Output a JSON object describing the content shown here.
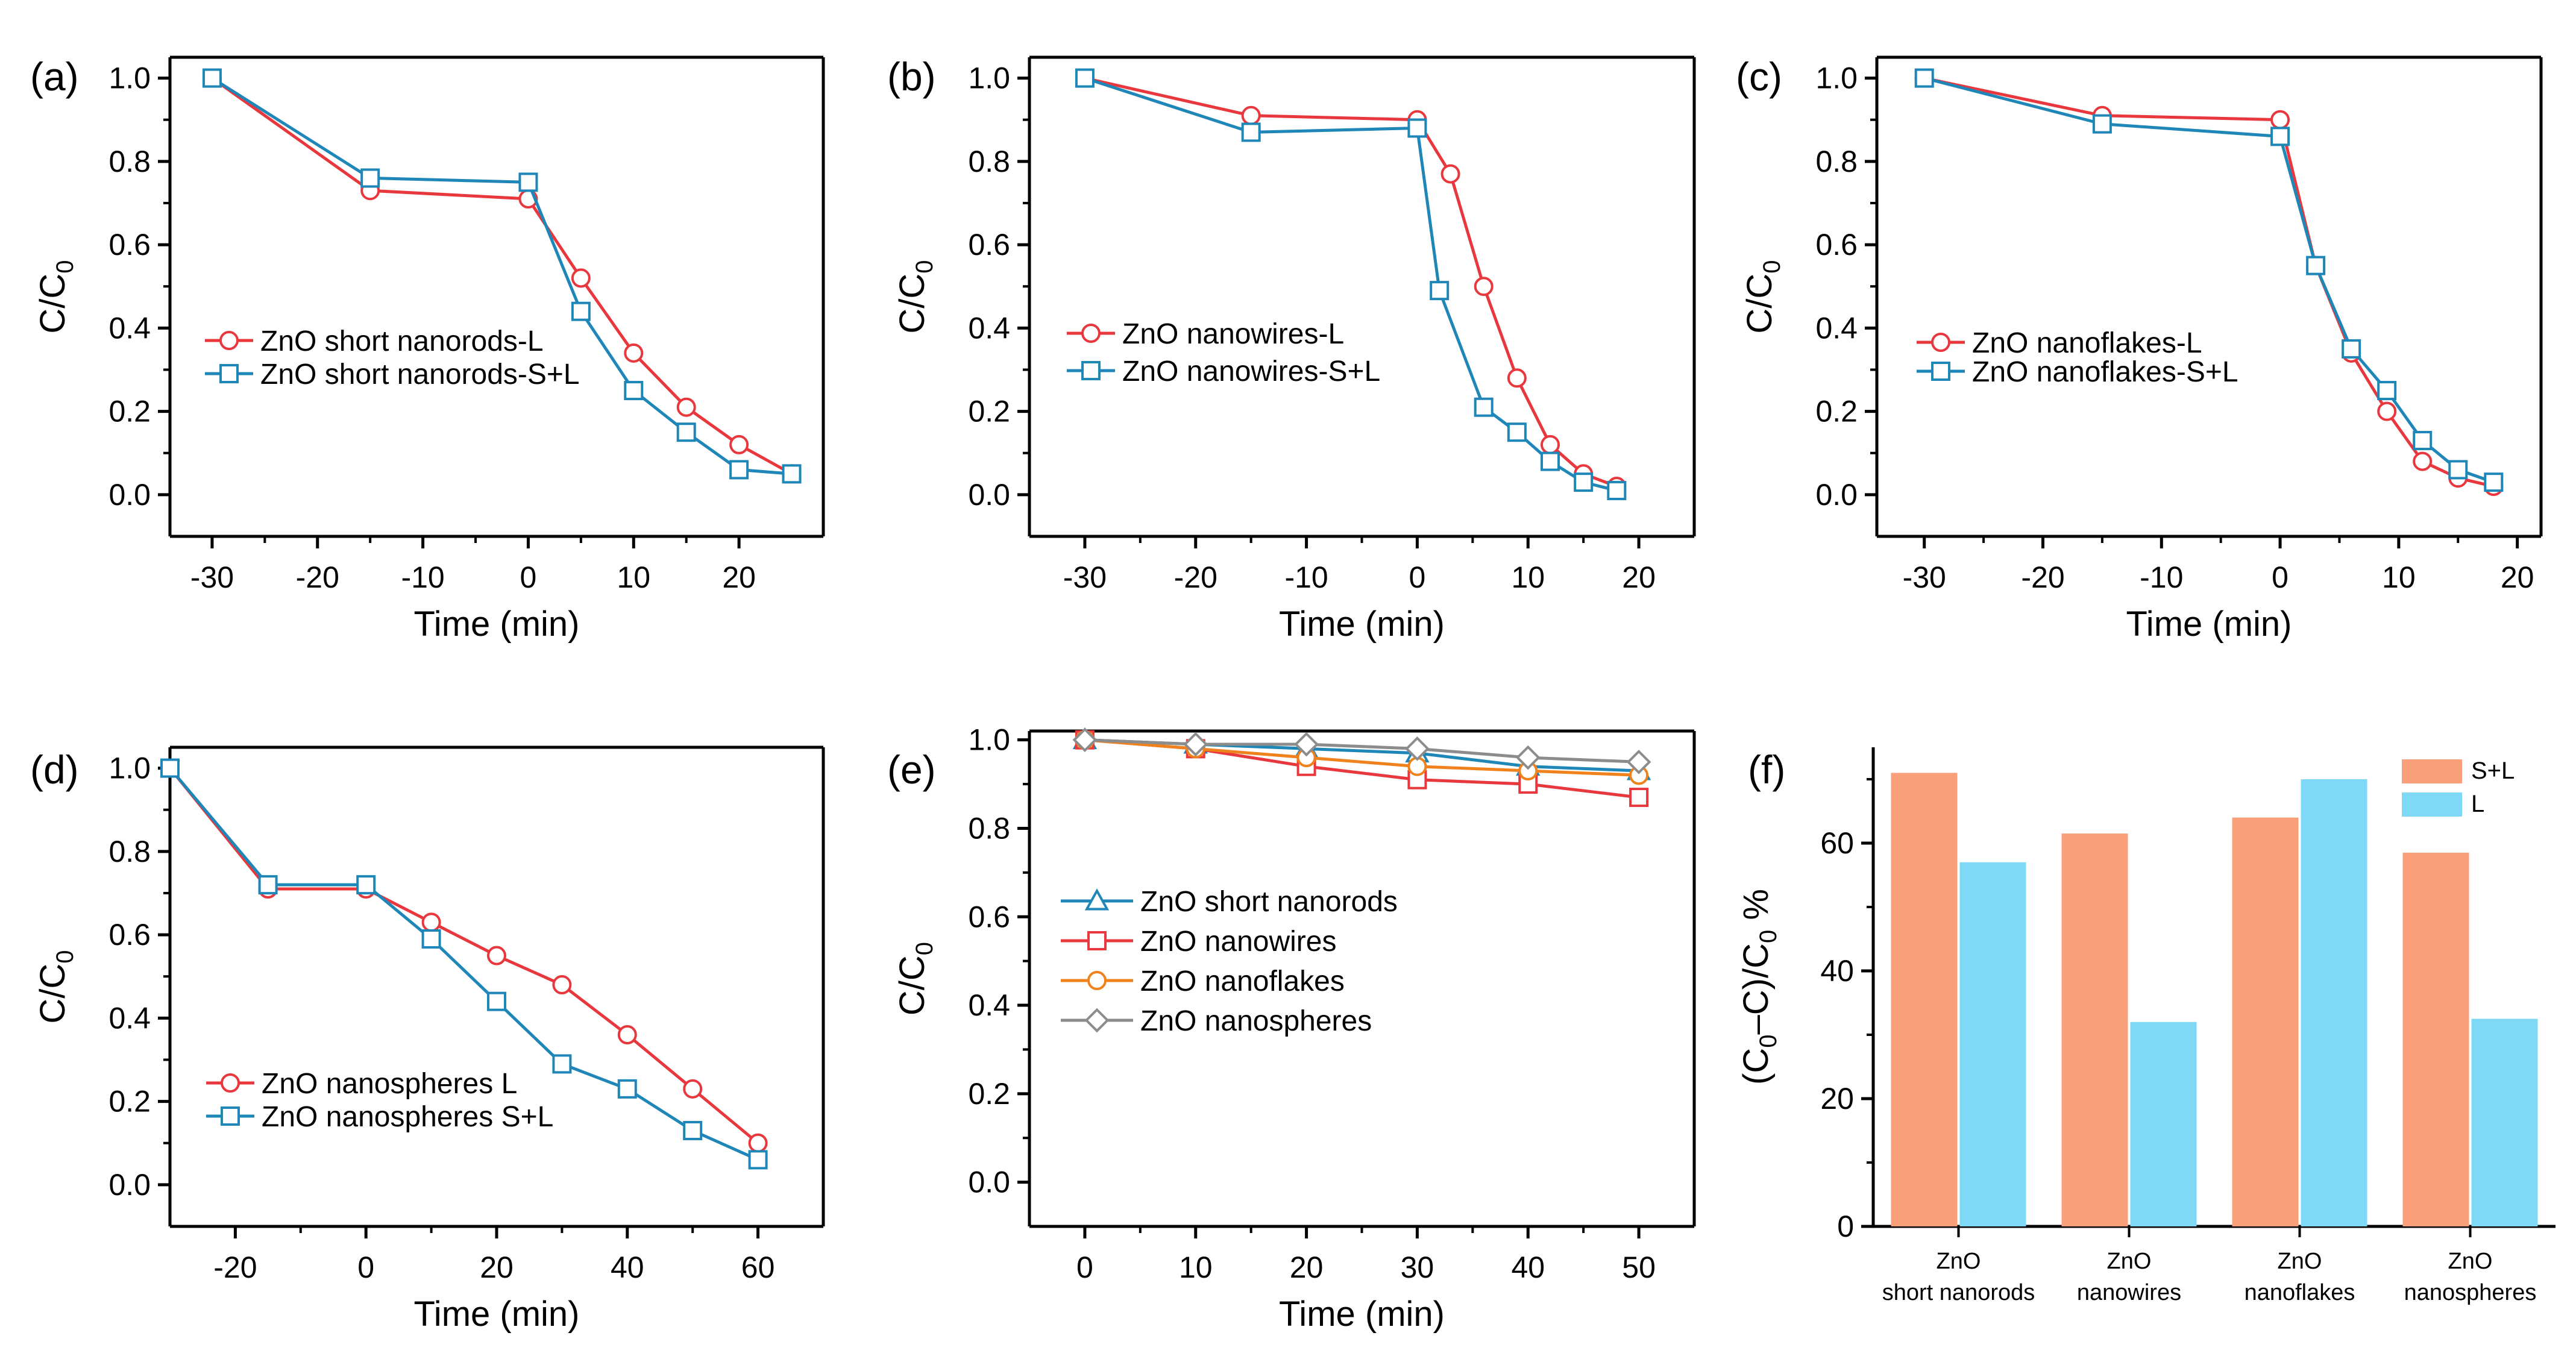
{
  "colors": {
    "red": "#e8383d",
    "blue": "#1f86b8",
    "orange": "#f0821e",
    "gray": "#8c8c8c",
    "bar_sl": "#f9a07a",
    "bar_l": "#7fd8f5"
  },
  "chart_data": [
    {
      "id": "a",
      "panel_label": "(a)",
      "type": "line",
      "xlabel": "Time (min)",
      "ylabel_main": "C/C",
      "ylabel_sub": "0",
      "xlim": [
        -34,
        28
      ],
      "ylim": [
        -0.1,
        1.05
      ],
      "xticks": [
        -30,
        -20,
        -10,
        0,
        10,
        20
      ],
      "xtick_labels": [
        "-30",
        "-20",
        "-10",
        "0",
        "10",
        "20"
      ],
      "yticks": [
        0,
        0.2,
        0.4,
        0.6,
        0.8,
        1.0
      ],
      "ytick_labels": [
        "0.0",
        "0.2",
        "0.4",
        "0.6",
        "0.8",
        "1.0"
      ],
      "legend_position": "center-left",
      "series": [
        {
          "name": "ZnO short nanorods-L",
          "color": "#e8383d",
          "marker": "circle",
          "dash": false,
          "x": [
            -30,
            -15,
            0,
            5,
            10,
            15,
            20,
            25
          ],
          "y": [
            1.0,
            0.73,
            0.71,
            0.52,
            0.34,
            0.21,
            0.12,
            0.05
          ]
        },
        {
          "name": "ZnO short nanorods-S+L",
          "color": "#1f86b8",
          "marker": "square",
          "dash": false,
          "x": [
            -30,
            -15,
            0,
            5,
            10,
            15,
            20,
            25
          ],
          "y": [
            1.0,
            0.76,
            0.75,
            0.44,
            0.25,
            0.15,
            0.06,
            0.05
          ]
        }
      ]
    },
    {
      "id": "b",
      "panel_label": "(b)",
      "type": "line",
      "xlabel": "Time (min)",
      "ylabel_main": "C/C",
      "ylabel_sub": "0",
      "xlim": [
        -35,
        25
      ],
      "ylim": [
        -0.1,
        1.05
      ],
      "xticks": [
        -30,
        -20,
        -10,
        0,
        10,
        20
      ],
      "xtick_labels": [
        "-30",
        "-20",
        "-10",
        "0",
        "10",
        "20"
      ],
      "yticks": [
        0,
        0.2,
        0.4,
        0.6,
        0.8,
        1.0
      ],
      "ytick_labels": [
        "0.0",
        "0.2",
        "0.4",
        "0.6",
        "0.8",
        "1.0"
      ],
      "legend_position": "center-left",
      "series": [
        {
          "name": "ZnO nanowires-L",
          "color": "#e8383d",
          "marker": "circle",
          "dash": false,
          "x": [
            -30,
            -15,
            0,
            3,
            6,
            9,
            12,
            15,
            18
          ],
          "y": [
            1.0,
            0.91,
            0.9,
            0.77,
            0.5,
            0.28,
            0.12,
            0.05,
            0.02
          ]
        },
        {
          "name": "ZnO nanowires-S+L",
          "color": "#1f86b8",
          "marker": "square",
          "dash": false,
          "x": [
            -30,
            -15,
            0,
            2,
            6,
            9,
            12,
            15,
            18
          ],
          "y": [
            1.0,
            0.87,
            0.88,
            0.49,
            0.21,
            0.15,
            0.08,
            0.03,
            0.01
          ]
        }
      ]
    },
    {
      "id": "c",
      "panel_label": "(c)",
      "type": "line",
      "xlabel": "Time (min)",
      "ylabel_main": "C/C",
      "ylabel_sub": "0",
      "xlim": [
        -34,
        22
      ],
      "ylim": [
        -0.1,
        1.05
      ],
      "xticks": [
        -30,
        -20,
        -10,
        0,
        10,
        20
      ],
      "xtick_labels": [
        "-30",
        "-20",
        "-10",
        "0",
        "10",
        "20"
      ],
      "yticks": [
        0,
        0.2,
        0.4,
        0.6,
        0.8,
        1.0
      ],
      "ytick_labels": [
        "0.0",
        "0.2",
        "0.4",
        "0.6",
        "0.8",
        "1.0"
      ],
      "legend_position": "center-left",
      "series": [
        {
          "name": "ZnO nanoflakes-L",
          "color": "#e8383d",
          "marker": "circle",
          "dash": false,
          "x": [
            -30,
            -15,
            0,
            3,
            6,
            9,
            12,
            15,
            18
          ],
          "y": [
            1.0,
            0.91,
            0.9,
            0.55,
            0.34,
            0.2,
            0.08,
            0.04,
            0.02
          ]
        },
        {
          "name": "ZnO nanoflakes-S+L",
          "color": "#1f86b8",
          "marker": "square",
          "dash": false,
          "x": [
            -30,
            -15,
            0,
            3,
            6,
            9,
            12,
            15,
            18
          ],
          "y": [
            1.0,
            0.89,
            0.86,
            0.55,
            0.35,
            0.25,
            0.13,
            0.06,
            0.03
          ]
        }
      ]
    },
    {
      "id": "d",
      "panel_label": "(d)",
      "type": "line",
      "xlabel": "Time (min)",
      "ylabel_main": "C/C",
      "ylabel_sub": "0",
      "xlim": [
        -30,
        70
      ],
      "ylim": [
        -0.1,
        1.05
      ],
      "xticks": [
        -20,
        0,
        20,
        40,
        60
      ],
      "xtick_labels": [
        "-20",
        "0",
        "20",
        "40",
        "60"
      ],
      "yticks": [
        0,
        0.2,
        0.4,
        0.6,
        0.8,
        1.0
      ],
      "ytick_labels": [
        "0.0",
        "0.2",
        "0.4",
        "0.6",
        "0.8",
        "1.0"
      ],
      "legend_position": "lower-left",
      "series": [
        {
          "name": "ZnO nanospheres L",
          "color": "#e8383d",
          "marker": "circle",
          "dash": false,
          "x": [
            -30,
            -15,
            0,
            10,
            20,
            30,
            40,
            50,
            60
          ],
          "y": [
            1.0,
            0.71,
            0.71,
            0.63,
            0.55,
            0.48,
            0.36,
            0.23,
            0.1
          ]
        },
        {
          "name": "ZnO nanospheres S+L",
          "color": "#1f86b8",
          "marker": "square",
          "dash": false,
          "x": [
            -30,
            -15,
            0,
            10,
            20,
            30,
            40,
            50,
            60
          ],
          "y": [
            1.0,
            0.72,
            0.72,
            0.59,
            0.44,
            0.29,
            0.23,
            0.13,
            0.06
          ]
        }
      ]
    },
    {
      "id": "e",
      "panel_label": "(e)",
      "type": "line",
      "xlabel": "Time (min)",
      "ylabel_main": "C/C",
      "ylabel_sub": "0",
      "xlim": [
        -5,
        55
      ],
      "ylim": [
        -0.1,
        1.02
      ],
      "xticks": [
        0,
        10,
        20,
        30,
        40,
        50
      ],
      "xtick_labels": [
        "0",
        "10",
        "20",
        "30",
        "40",
        "50"
      ],
      "yticks": [
        0,
        0.2,
        0.4,
        0.6,
        0.8,
        1.0
      ],
      "ytick_labels": [
        "0.0",
        "0.2",
        "0.4",
        "0.6",
        "0.8",
        "1.0"
      ],
      "legend_position": "center-left",
      "series": [
        {
          "name": "ZnO short nanorods",
          "color": "#1f86b8",
          "marker": "triangle",
          "dash": false,
          "x": [
            0,
            10,
            20,
            30,
            40,
            50
          ],
          "y": [
            1.0,
            0.99,
            0.98,
            0.97,
            0.94,
            0.93
          ]
        },
        {
          "name": "ZnO nanowires",
          "color": "#e8383d",
          "marker": "square",
          "dash": false,
          "x": [
            0,
            10,
            20,
            30,
            40,
            50
          ],
          "y": [
            1.0,
            0.98,
            0.94,
            0.91,
            0.9,
            0.87
          ]
        },
        {
          "name": "ZnO nanoflakes",
          "color": "#f0821e",
          "marker": "circle",
          "dash": false,
          "x": [
            0,
            10,
            20,
            30,
            40,
            50
          ],
          "y": [
            1.0,
            0.98,
            0.96,
            0.94,
            0.93,
            0.92
          ]
        },
        {
          "name": "ZnO nanospheres",
          "color": "#8c8c8c",
          "marker": "diamond",
          "dash": false,
          "x": [
            0,
            10,
            20,
            30,
            40,
            50
          ],
          "y": [
            1.0,
            0.99,
            0.99,
            0.98,
            0.96,
            0.95
          ]
        }
      ]
    },
    {
      "id": "f",
      "panel_label": "(f)",
      "type": "bar",
      "ylabel_main": "(C",
      "ylabel_sub": "0",
      "ylabel_mid": "–C)/C",
      "ylabel_sub2": "0",
      "ylabel_tail": " %",
      "ylim": [
        0,
        75
      ],
      "yticks": [
        0,
        20,
        40,
        60
      ],
      "ytick_labels": [
        "0",
        "20",
        "40",
        "60"
      ],
      "legend_position": "top-right",
      "categories": [
        {
          "line1": "ZnO",
          "line2": "short nanorods"
        },
        {
          "line1": "ZnO",
          "line2": "nanowires"
        },
        {
          "line1": "ZnO",
          "line2": "nanoflakes"
        },
        {
          "line1": "ZnO",
          "line2": "nanospheres"
        }
      ],
      "series": [
        {
          "name": "S+L",
          "color": "#f9a07a",
          "values": [
            71,
            61.5,
            64,
            58.5
          ]
        },
        {
          "name": "L",
          "color": "#7fd8f5",
          "values": [
            57,
            32,
            70,
            32.5
          ]
        }
      ]
    }
  ]
}
